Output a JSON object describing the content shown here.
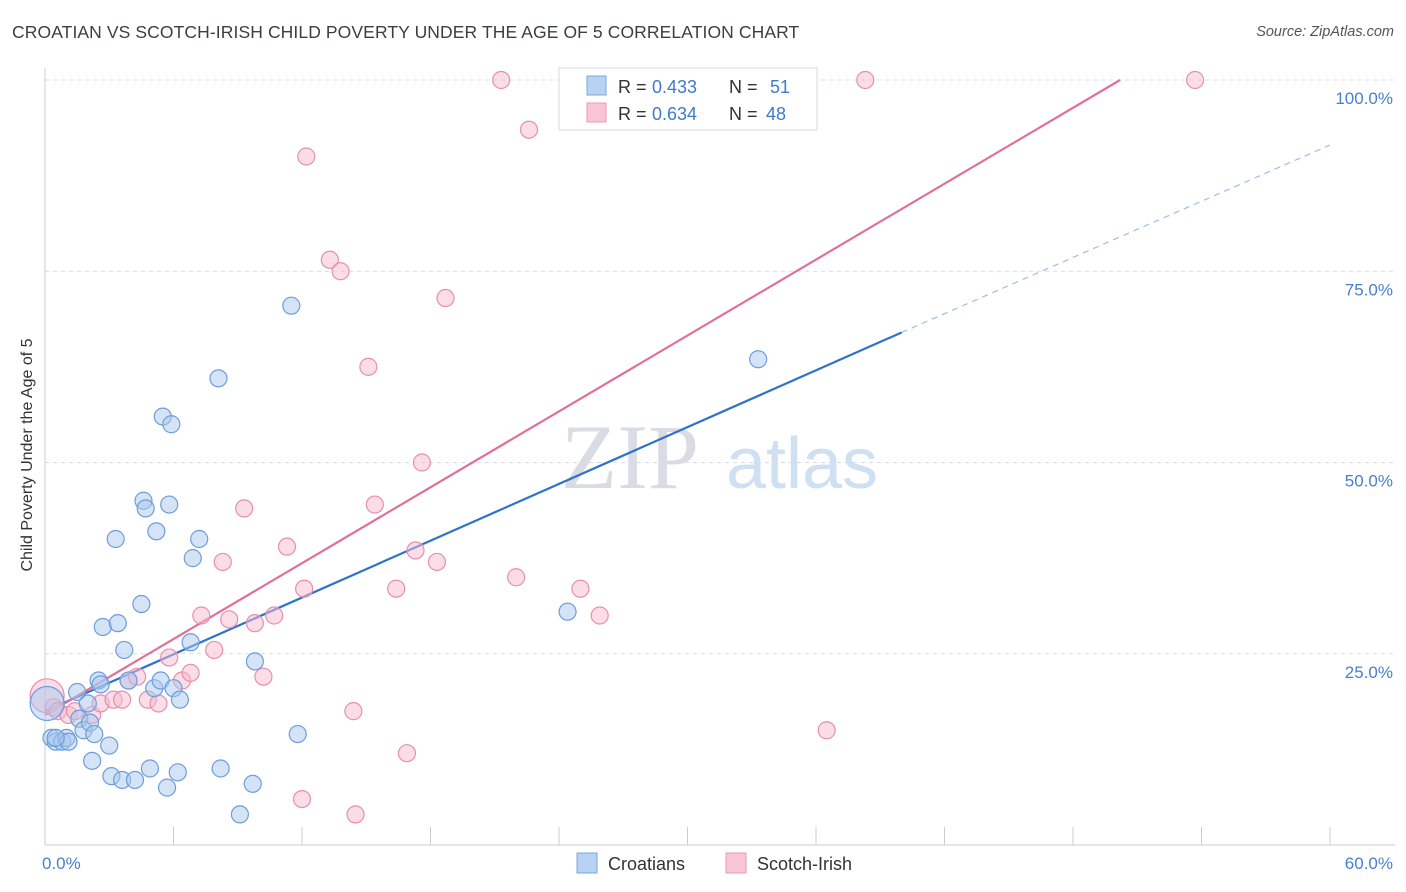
{
  "title": "CROATIAN VS SCOTCH-IRISH CHILD POVERTY UNDER THE AGE OF 5 CORRELATION CHART",
  "source": "Source: ZipAtlas.com",
  "watermark": {
    "zip": "ZIP",
    "atlas": "atlas"
  },
  "colors": {
    "blue_fill": "#a9c8ee",
    "blue_stroke": "#6d9edb",
    "blue_line": "#2f72c9",
    "pink_fill": "#f5bcd0",
    "pink_stroke": "#e88eae",
    "pink_line": "#e0709a",
    "tick_label": "#4a7fcc",
    "grid": "#d8dde4"
  },
  "legend": {
    "rows": [
      {
        "r_label": "R = ",
        "r_value": "0.433",
        "n_label": "N = ",
        "n_value": "51"
      },
      {
        "r_label": "R = ",
        "r_value": "0.634",
        "n_label": "N = ",
        "n_value": "48"
      }
    ],
    "bottom": [
      "Croatians",
      "Scotch-Irish"
    ]
  },
  "chart_data": {
    "type": "scatter",
    "title": "CROATIAN VS SCOTCH-IRISH CHILD POVERTY UNDER THE AGE OF 5 CORRELATION CHART",
    "xlabel": "",
    "ylabel": "Child Poverty Under the Age of 5",
    "xlim": [
      0,
      60
    ],
    "ylim": [
      0,
      100
    ],
    "x_tick_labels": [
      "0.0%",
      "60.0%"
    ],
    "y_tick_values": [
      25,
      50,
      75,
      100
    ],
    "y_tick_labels": [
      "25.0%",
      "50.0%",
      "75.0%",
      "100.0%"
    ],
    "grid": true,
    "legend_position": "top-center",
    "series": [
      {
        "name": "Croatians",
        "r": 0.433,
        "n": 51,
        "trend": {
          "x0": 0,
          "y0": 17.5,
          "x1": 40,
          "y1": 67,
          "dashed_to_x": 60,
          "dashed_to_y": 91.5
        },
        "points": [
          [
            0.1,
            18.5
          ],
          [
            0.3,
            14.0
          ],
          [
            0.5,
            13.5
          ],
          [
            0.8,
            13.5
          ],
          [
            1.0,
            14.0
          ],
          [
            1.1,
            13.5
          ],
          [
            1.5,
            20.0
          ],
          [
            1.6,
            16.5
          ],
          [
            1.8,
            15.0
          ],
          [
            2.0,
            18.5
          ],
          [
            2.1,
            16.0
          ],
          [
            2.2,
            11.0
          ],
          [
            2.3,
            14.5
          ],
          [
            2.5,
            21.5
          ],
          [
            2.6,
            21.0
          ],
          [
            2.7,
            28.5
          ],
          [
            3.0,
            13.0
          ],
          [
            3.1,
            9.0
          ],
          [
            3.3,
            40.0
          ],
          [
            3.4,
            29.0
          ],
          [
            3.6,
            8.5
          ],
          [
            3.7,
            25.5
          ],
          [
            3.9,
            21.5
          ],
          [
            4.2,
            8.5
          ],
          [
            4.5,
            31.5
          ],
          [
            4.6,
            45.0
          ],
          [
            4.7,
            44.0
          ],
          [
            4.9,
            10.0
          ],
          [
            5.1,
            20.5
          ],
          [
            5.2,
            41.0
          ],
          [
            5.4,
            21.5
          ],
          [
            5.5,
            56.0
          ],
          [
            5.7,
            7.5
          ],
          [
            5.8,
            44.5
          ],
          [
            5.9,
            55.0
          ],
          [
            6.0,
            20.5
          ],
          [
            6.2,
            9.5
          ],
          [
            6.3,
            19.0
          ],
          [
            6.8,
            26.5
          ],
          [
            6.9,
            37.5
          ],
          [
            7.2,
            40.0
          ],
          [
            8.1,
            61.0
          ],
          [
            8.2,
            10.0
          ],
          [
            9.1,
            4.0
          ],
          [
            9.7,
            8.0
          ],
          [
            9.8,
            24.0
          ],
          [
            11.5,
            70.5
          ],
          [
            11.8,
            14.5
          ],
          [
            24.4,
            30.5
          ],
          [
            33.3,
            63.5
          ],
          [
            0.5,
            14.0
          ]
        ]
      },
      {
        "name": "Scotch-Irish",
        "r": 0.634,
        "n": 48,
        "trend": {
          "x0": 0,
          "y0": 17.0,
          "x1": 50.2,
          "y1": 100
        },
        "points": [
          [
            0.1,
            19.5
          ],
          [
            0.4,
            18.0
          ],
          [
            0.6,
            17.5
          ],
          [
            1.1,
            17.0
          ],
          [
            1.4,
            17.5
          ],
          [
            2.2,
            17.0
          ],
          [
            2.6,
            18.5
          ],
          [
            3.2,
            19.0
          ],
          [
            3.6,
            19.0
          ],
          [
            3.9,
            21.5
          ],
          [
            4.3,
            22.0
          ],
          [
            4.8,
            19.0
          ],
          [
            5.3,
            18.5
          ],
          [
            5.8,
            24.5
          ],
          [
            6.4,
            21.5
          ],
          [
            6.8,
            22.5
          ],
          [
            7.3,
            30.0
          ],
          [
            7.9,
            25.5
          ],
          [
            8.3,
            37.0
          ],
          [
            8.6,
            29.5
          ],
          [
            9.3,
            44.0
          ],
          [
            9.8,
            29.0
          ],
          [
            10.2,
            22.0
          ],
          [
            10.7,
            30.0
          ],
          [
            11.3,
            39.0
          ],
          [
            12.0,
            6.0
          ],
          [
            12.1,
            33.5
          ],
          [
            12.2,
            90.0
          ],
          [
            13.3,
            76.5
          ],
          [
            13.8,
            75.0
          ],
          [
            14.4,
            17.5
          ],
          [
            14.5,
            4.0
          ],
          [
            15.1,
            62.5
          ],
          [
            15.4,
            44.5
          ],
          [
            16.4,
            33.5
          ],
          [
            16.9,
            12.0
          ],
          [
            17.3,
            38.5
          ],
          [
            17.6,
            50.0
          ],
          [
            18.3,
            37.0
          ],
          [
            18.7,
            71.5
          ],
          [
            21.3,
            100.0
          ],
          [
            22.0,
            35.0
          ],
          [
            22.6,
            93.5
          ],
          [
            25.0,
            33.5
          ],
          [
            25.9,
            30.0
          ],
          [
            36.5,
            15.0
          ],
          [
            38.3,
            100.0
          ],
          [
            53.7,
            100.0
          ]
        ]
      }
    ]
  }
}
